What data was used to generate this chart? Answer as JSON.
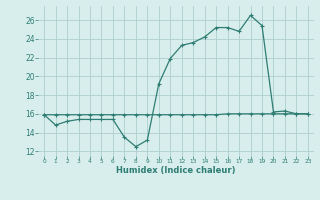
{
  "x": [
    0,
    1,
    2,
    3,
    4,
    5,
    6,
    7,
    8,
    9,
    10,
    11,
    12,
    13,
    14,
    15,
    16,
    17,
    18,
    19,
    20,
    21,
    22,
    23
  ],
  "y_curve": [
    15.9,
    14.8,
    15.2,
    15.4,
    15.4,
    15.4,
    15.4,
    13.5,
    12.5,
    13.2,
    19.2,
    21.9,
    23.3,
    23.6,
    24.2,
    25.2,
    25.2,
    24.8,
    26.5,
    25.4,
    16.2,
    16.3,
    16.0,
    16.0
  ],
  "y_flat": [
    15.9,
    15.9,
    15.9,
    15.9,
    15.9,
    15.9,
    15.9,
    15.9,
    15.9,
    15.9,
    15.9,
    15.9,
    15.9,
    15.9,
    15.9,
    15.9,
    16.0,
    16.0,
    16.0,
    16.0,
    16.0,
    16.0,
    16.0,
    16.0
  ],
  "xlim": [
    -0.5,
    23.5
  ],
  "ylim": [
    11.5,
    27.5
  ],
  "yticks": [
    12,
    14,
    16,
    18,
    20,
    22,
    24,
    26
  ],
  "xticks": [
    0,
    1,
    2,
    3,
    4,
    5,
    6,
    7,
    8,
    9,
    10,
    11,
    12,
    13,
    14,
    15,
    16,
    17,
    18,
    19,
    20,
    21,
    22,
    23
  ],
  "xlabel": "Humidex (Indice chaleur)",
  "line_color": "#2e7d73",
  "bg_color": "#d8eeed",
  "grid_color": "#b0cece",
  "marker": "+",
  "linewidth": 0.9,
  "markersize": 3.5
}
